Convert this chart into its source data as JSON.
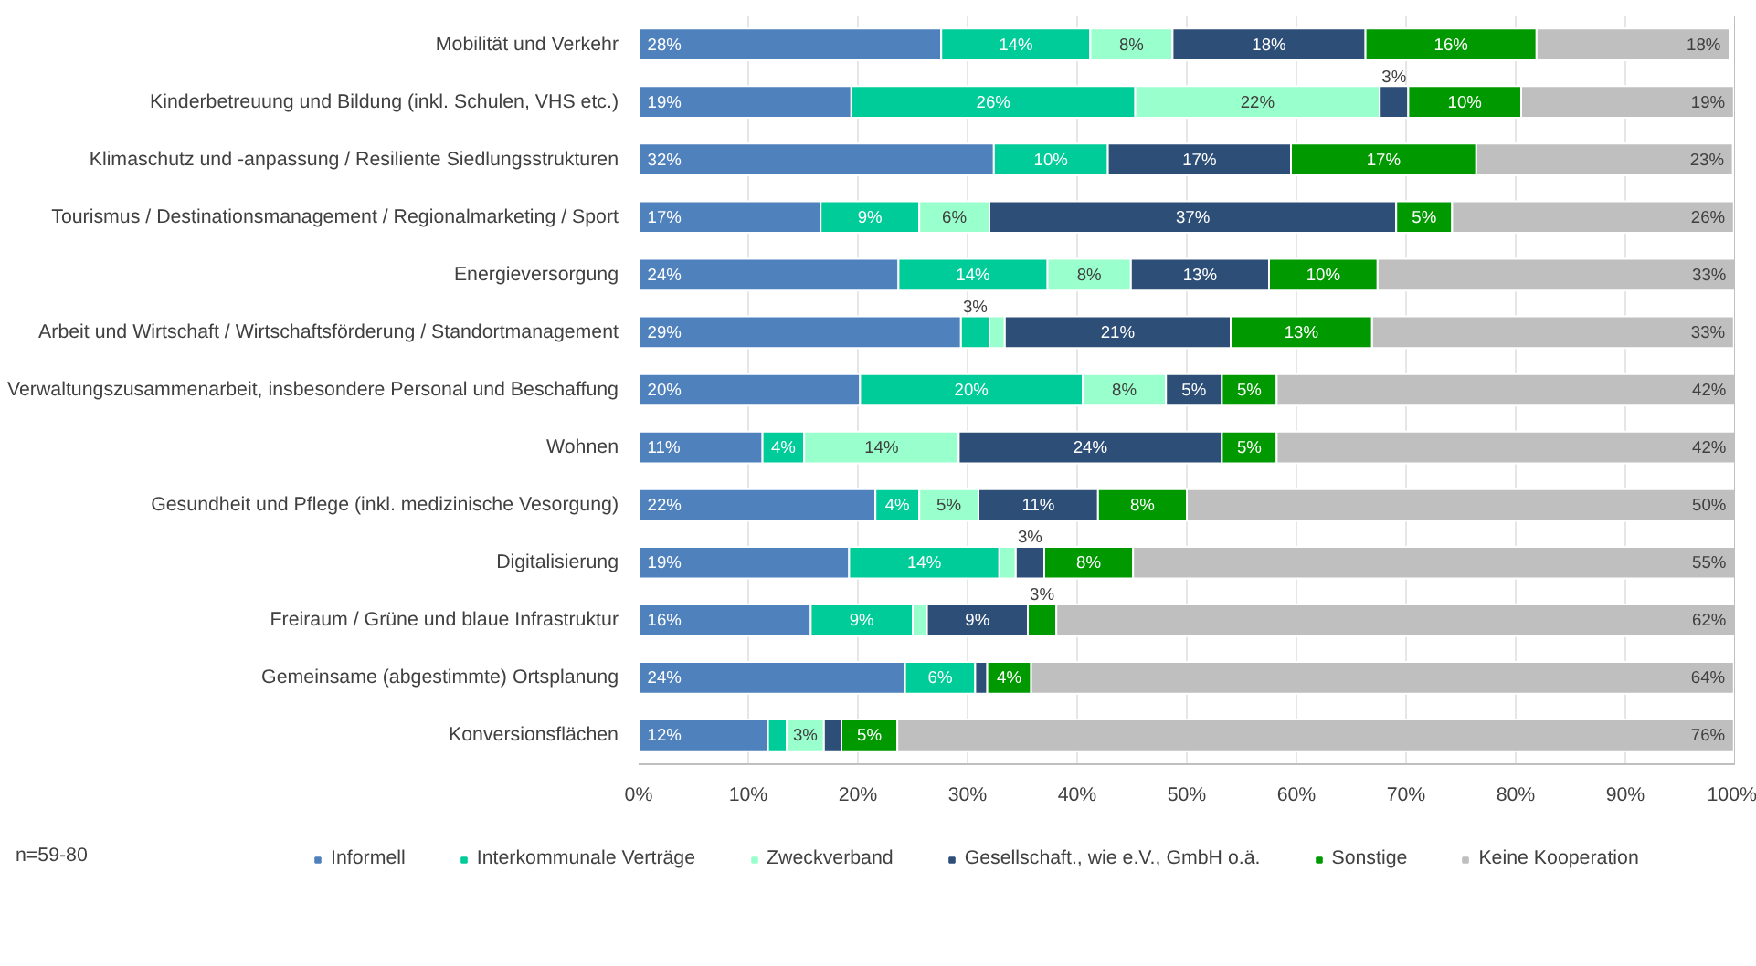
{
  "chart_data": {
    "type": "bar",
    "orientation": "horizontal",
    "stacked": true,
    "categories": [
      "Mobilität und Verkehr",
      "Kinderbetreuung und Bildung (inkl. Schulen, VHS etc.)",
      "Klimaschutz und -anpassung / Resiliente Siedlungsstrukturen",
      "Tourismus / Destinationsmanagement / Regionalmarketing / Sport",
      "Energieversorgung",
      "Arbeit und Wirtschaft / Wirtschaftsförderung / Standortmanagement",
      "Verwaltungszusammenarbeit, insbesondere Personal und Beschaffung",
      "Wohnen",
      "Gesundheit und Pflege (inkl. medizinische Vesorgung)",
      "Digitalisierung",
      "Freiraum / Grüne und blaue Infrastruktur",
      "Gemeinsame (abgestimmte) Ortsplanung",
      "Konversionsflächen"
    ],
    "series": [
      {
        "name": "Informell",
        "color": "#4f81bd",
        "values": [
          27.6,
          19.4,
          32.4,
          16.6,
          23.7,
          29.4,
          20.2,
          11.3,
          21.6,
          19.2,
          15.7,
          24.3,
          11.8
        ],
        "value_labels": [
          "28%",
          "19%",
          "32%",
          "17%",
          "24%",
          "29%",
          "20%",
          "11%",
          "22%",
          "19%",
          "16%",
          "24%",
          "12%"
        ]
      },
      {
        "name": "Interkommunale Verträge",
        "color": "#00cc99",
        "values": [
          13.6,
          25.9,
          10.4,
          9.0,
          13.6,
          2.6,
          20.3,
          3.8,
          4.0,
          13.7,
          9.3,
          6.4,
          1.7
        ],
        "value_labels": [
          "14%",
          "26%",
          "10%",
          "9%",
          "14%",
          "3%",
          "20%",
          "4%",
          "4%",
          "14%",
          "9%",
          "6%",
          null
        ]
      },
      {
        "name": "Zweckverband",
        "color": "#99ffcc",
        "values": [
          7.5,
          22.3,
          null,
          6.4,
          7.6,
          1.4,
          7.6,
          14.1,
          5.4,
          1.5,
          1.3,
          null,
          3.4
        ],
        "value_labels": [
          "8%",
          "22%",
          null,
          "6%",
          "8%",
          null,
          "8%",
          "14%",
          "5%",
          null,
          null,
          null,
          "3%"
        ]
      },
      {
        "name": "Gesellschaft., wie e.V., GmbH o.ä.",
        "color": "#2d4e77",
        "values": [
          17.6,
          2.6,
          16.7,
          37.1,
          12.6,
          20.6,
          5.1,
          24.0,
          10.9,
          2.6,
          9.2,
          1.1,
          1.6
        ],
        "value_labels": [
          "18%",
          "3%",
          "17%",
          "37%",
          "13%",
          "21%",
          "5%",
          "24%",
          "11%",
          "3%",
          "9%",
          null,
          null
        ]
      },
      {
        "name": "Sonstige",
        "color": "#009900",
        "values": [
          15.6,
          10.3,
          16.9,
          5.1,
          9.9,
          12.9,
          5.0,
          5.0,
          8.1,
          8.1,
          2.6,
          4.0,
          5.1
        ],
        "value_labels": [
          "16%",
          "10%",
          "17%",
          "5%",
          "10%",
          "13%",
          "5%",
          "5%",
          "8%",
          "8%",
          "3%",
          "4%",
          "5%"
        ]
      },
      {
        "name": "Keine Kooperation",
        "color": "#bfbfbf",
        "values": [
          17.6,
          19.4,
          23.4,
          25.7,
          32.6,
          33.0,
          41.8,
          41.8,
          50.0,
          54.9,
          61.9,
          64.1,
          76.3
        ],
        "value_labels": [
          "18%",
          "19%",
          "23%",
          "26%",
          "33%",
          "33%",
          "42%",
          "42%",
          "50%",
          "55%",
          "62%",
          "64%",
          "76%"
        ]
      }
    ],
    "xlim": [
      0,
      100
    ],
    "xticks": [
      {
        "value": 0,
        "label": "0%"
      },
      {
        "value": 10,
        "label": "10%"
      },
      {
        "value": 20,
        "label": "20%"
      },
      {
        "value": 30,
        "label": "30%"
      },
      {
        "value": 40,
        "label": "40%"
      },
      {
        "value": 50,
        "label": "50%"
      },
      {
        "value": 60,
        "label": "60%"
      },
      {
        "value": 70,
        "label": "70%"
      },
      {
        "value": 80,
        "label": "80%"
      },
      {
        "value": 90,
        "label": "90%"
      },
      {
        "value": 100,
        "label": "100%"
      }
    ],
    "grid": "x",
    "legend": "bottom",
    "annotations": [
      "n=59-80"
    ]
  }
}
